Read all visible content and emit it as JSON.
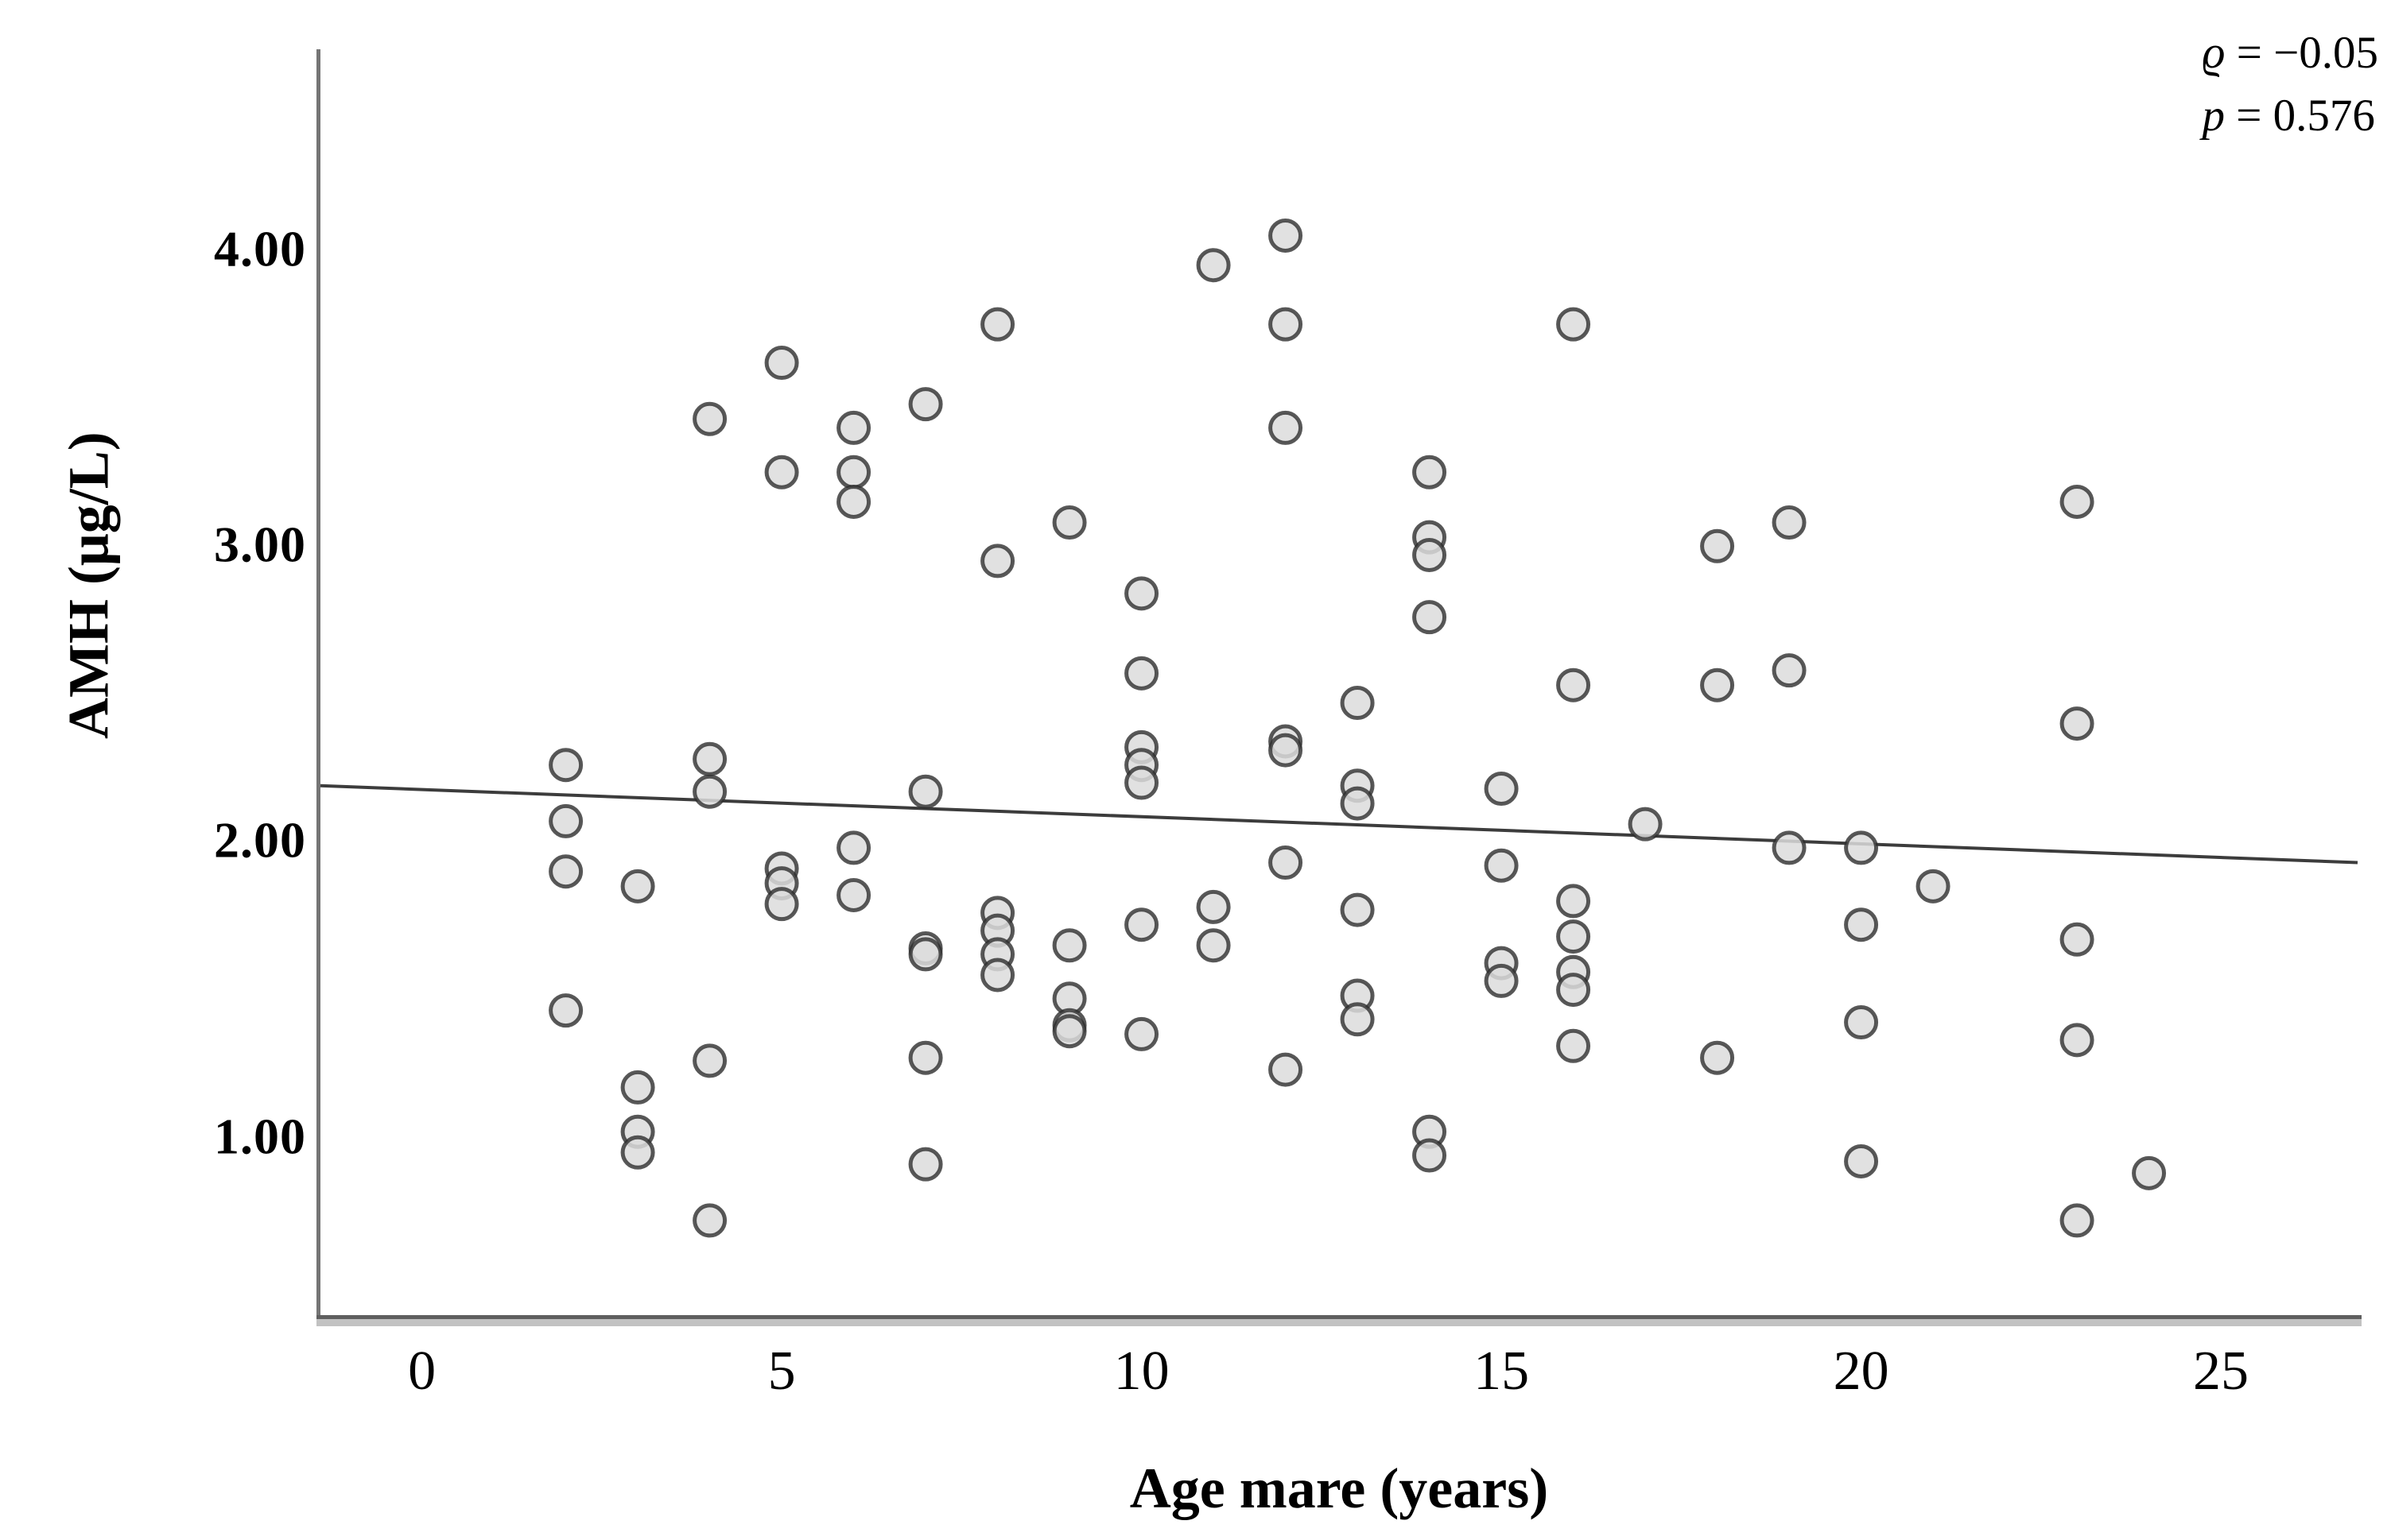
{
  "figure": {
    "x_title": "Age mare (years)",
    "y_title": "AMH (μg/L)"
  },
  "annotation": {
    "lines": [
      {
        "symbol": "ϱ",
        "text": " = −0.05"
      },
      {
        "symbol": "p",
        "text": " = 0.576"
      }
    ]
  },
  "style": {
    "marker_fill": "#dcdcdc",
    "marker_stroke": "#2e2e2e",
    "fit_line_color": "#3c3c3c",
    "axis_color": "#6a6a6a"
  },
  "chart_data": {
    "type": "scatter",
    "title": "",
    "xlabel": "Age mare (years)",
    "ylabel": "AMH (μg/L)",
    "xlim": [
      -1.41,
      26.9
    ],
    "ylim": [
      0.4,
      4.68
    ],
    "grid": false,
    "legend": "none",
    "xticks": {
      "values": [
        0,
        5,
        10,
        15,
        20,
        25
      ],
      "labels": [
        "0",
        "5",
        "10",
        "15",
        "20",
        "25"
      ]
    },
    "yticks": {
      "values": [
        1,
        2,
        3,
        4
      ],
      "labels": [
        "1.00",
        "2.00",
        "3.00",
        "4.00"
      ]
    },
    "stats": {
      "spearman_rho": -0.05,
      "p_value": 0.576
    },
    "fit_line": {
      "x1": -1.41,
      "y1": 2.19,
      "x2": 26.9,
      "y2": 1.93
    },
    "points": [
      [
        2,
        2.26
      ],
      [
        2,
        2.07
      ],
      [
        2,
        1.9
      ],
      [
        2,
        1.43
      ],
      [
        3,
        1.85
      ],
      [
        3,
        1.17
      ],
      [
        3,
        1.02
      ],
      [
        3,
        0.95
      ],
      [
        4,
        3.43
      ],
      [
        4,
        2.28
      ],
      [
        4,
        2.17
      ],
      [
        4,
        1.26
      ],
      [
        4,
        0.72
      ],
      [
        5,
        3.62
      ],
      [
        5,
        3.25
      ],
      [
        5,
        1.91
      ],
      [
        5,
        1.86
      ],
      [
        5,
        1.79
      ],
      [
        6,
        3.4
      ],
      [
        6,
        3.25
      ],
      [
        6,
        3.15
      ],
      [
        6,
        1.98
      ],
      [
        6,
        1.82
      ],
      [
        7,
        3.48
      ],
      [
        7,
        2.17
      ],
      [
        7,
        1.64
      ],
      [
        7,
        1.62
      ],
      [
        7,
        1.27
      ],
      [
        7,
        0.91
      ],
      [
        8,
        3.75
      ],
      [
        8,
        2.95
      ],
      [
        8,
        1.76
      ],
      [
        8,
        1.7
      ],
      [
        8,
        1.62
      ],
      [
        8,
        1.55
      ],
      [
        9,
        3.08
      ],
      [
        9,
        1.65
      ],
      [
        9,
        1.47
      ],
      [
        9,
        1.38
      ],
      [
        9,
        1.36
      ],
      [
        10,
        2.84
      ],
      [
        10,
        2.57
      ],
      [
        10,
        2.32
      ],
      [
        10,
        2.26
      ],
      [
        10,
        2.2
      ],
      [
        10,
        1.72
      ],
      [
        10,
        1.35
      ],
      [
        11,
        3.95
      ],
      [
        11,
        1.78
      ],
      [
        11,
        1.65
      ],
      [
        12,
        4.05
      ],
      [
        12,
        3.75
      ],
      [
        12,
        3.4
      ],
      [
        12,
        2.34
      ],
      [
        12,
        2.31
      ],
      [
        12,
        1.93
      ],
      [
        12,
        1.23
      ],
      [
        13,
        2.47
      ],
      [
        13,
        2.19
      ],
      [
        13,
        2.13
      ],
      [
        13,
        1.77
      ],
      [
        13,
        1.48
      ],
      [
        13,
        1.4
      ],
      [
        14,
        3.25
      ],
      [
        14,
        3.03
      ],
      [
        14,
        2.97
      ],
      [
        14,
        2.76
      ],
      [
        14,
        1.02
      ],
      [
        14,
        0.94
      ],
      [
        15,
        2.18
      ],
      [
        15,
        1.92
      ],
      [
        15,
        1.59
      ],
      [
        15,
        1.53
      ],
      [
        16,
        3.75
      ],
      [
        16,
        2.53
      ],
      [
        16,
        1.8
      ],
      [
        16,
        1.68
      ],
      [
        16,
        1.56
      ],
      [
        16,
        1.5
      ],
      [
        16,
        1.31
      ],
      [
        17,
        2.06
      ],
      [
        18,
        3.0
      ],
      [
        18,
        2.53
      ],
      [
        18,
        1.27
      ],
      [
        19,
        3.08
      ],
      [
        19,
        2.58
      ],
      [
        19,
        1.98
      ],
      [
        20,
        1.98
      ],
      [
        20,
        1.72
      ],
      [
        20,
        1.39
      ],
      [
        20,
        0.92
      ],
      [
        21,
        1.85
      ],
      [
        23,
        3.15
      ],
      [
        23,
        2.4
      ],
      [
        23,
        1.67
      ],
      [
        23,
        1.33
      ],
      [
        23,
        0.72
      ],
      [
        24,
        0.88
      ]
    ]
  }
}
